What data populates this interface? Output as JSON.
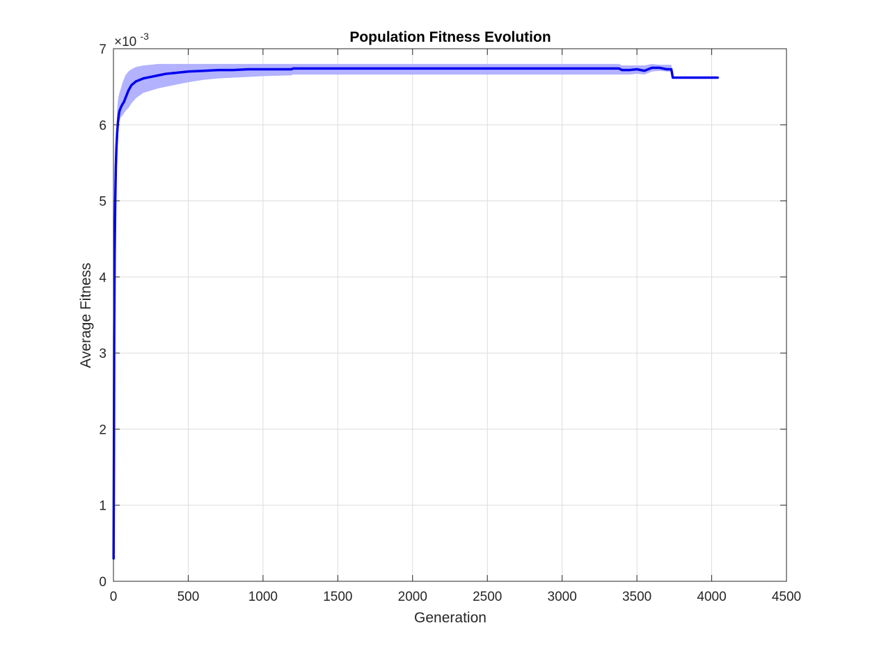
{
  "chart_data": {
    "type": "line",
    "title": "Population Fitness Evolution",
    "xlabel": "Generation",
    "ylabel": "Average Fitness",
    "xlim": [
      0,
      4500
    ],
    "ylim": [
      0,
      0.007
    ],
    "y_display_scale": 1000,
    "y_exponent_prefix": "×10",
    "y_exponent_power": "-3",
    "xticks": [
      0,
      500,
      1000,
      1500,
      2000,
      2500,
      3000,
      3500,
      4000,
      4500
    ],
    "xtick_labels": [
      "0",
      "500",
      "1000",
      "1500",
      "2000",
      "2500",
      "3000",
      "3500",
      "4000",
      "4500"
    ],
    "yticks": [
      0,
      0.001,
      0.002,
      0.003,
      0.004,
      0.005,
      0.006,
      0.007
    ],
    "ytick_labels": [
      "0",
      "1",
      "2",
      "3",
      "4",
      "5",
      "6",
      "7"
    ],
    "grid": true,
    "colors": {
      "line": "#0000ee",
      "band": "#aaaaff",
      "grid": "#dcdcdc",
      "axis": "#262626"
    },
    "series": [
      {
        "name": "Average Fitness",
        "x": [
          1,
          3,
          5,
          8,
          12,
          16,
          20,
          25,
          30,
          35,
          40,
          50,
          60,
          70,
          80,
          100,
          120,
          150,
          200,
          250,
          300,
          350,
          400,
          450,
          500,
          600,
          700,
          800,
          900,
          1000,
          1190,
          1200,
          1500,
          2000,
          2500,
          3000,
          3380,
          3400,
          3450,
          3500,
          3550,
          3600,
          3650,
          3700,
          3730,
          3740,
          3800,
          3900,
          4000,
          4040
        ],
        "y": [
          0.0003,
          0.0016,
          0.0032,
          0.0043,
          0.005,
          0.00545,
          0.0057,
          0.0059,
          0.00603,
          0.00612,
          0.00618,
          0.00623,
          0.00627,
          0.0063,
          0.00635,
          0.00645,
          0.00652,
          0.00657,
          0.00661,
          0.00663,
          0.00665,
          0.00667,
          0.00668,
          0.00669,
          0.0067,
          0.00671,
          0.00672,
          0.00672,
          0.00673,
          0.00673,
          0.00673,
          0.00674,
          0.00674,
          0.00674,
          0.00674,
          0.00674,
          0.00674,
          0.00672,
          0.00672,
          0.00673,
          0.00671,
          0.00675,
          0.00675,
          0.00673,
          0.00673,
          0.00662,
          0.00662,
          0.00662,
          0.00662,
          0.00662
        ],
        "band_upper": [
          0.0003,
          0.0016,
          0.0032,
          0.0043,
          0.005,
          0.00555,
          0.0059,
          0.0062,
          0.00632,
          0.00638,
          0.00642,
          0.00648,
          0.00655,
          0.0066,
          0.00665,
          0.0067,
          0.00673,
          0.00676,
          0.00678,
          0.00679,
          0.0068,
          0.0068,
          0.0068,
          0.0068,
          0.0068,
          0.0068,
          0.0068,
          0.0068,
          0.0068,
          0.0068,
          0.0068,
          0.0068,
          0.0068,
          0.0068,
          0.0068,
          0.0068,
          0.0068,
          0.00678,
          0.00678,
          0.00678,
          0.00678,
          0.0068,
          0.00679,
          0.00679,
          0.00679,
          0.00662,
          0.00662,
          0.00662,
          0.00662,
          0.00662
        ],
        "band_lower": [
          0.0003,
          0.0016,
          0.0032,
          0.0043,
          0.005,
          0.00535,
          0.0055,
          0.0057,
          0.00585,
          0.006,
          0.00605,
          0.0061,
          0.00612,
          0.00615,
          0.00618,
          0.00622,
          0.00628,
          0.00635,
          0.00642,
          0.00645,
          0.00648,
          0.0065,
          0.00652,
          0.00654,
          0.00656,
          0.00659,
          0.00661,
          0.00662,
          0.00663,
          0.00664,
          0.00665,
          0.00666,
          0.00666,
          0.00666,
          0.00666,
          0.00666,
          0.00666,
          0.00666,
          0.00666,
          0.00667,
          0.00666,
          0.0067,
          0.00671,
          0.0067,
          0.0067,
          0.00662,
          0.00662,
          0.00662,
          0.00662,
          0.00662
        ]
      }
    ]
  }
}
